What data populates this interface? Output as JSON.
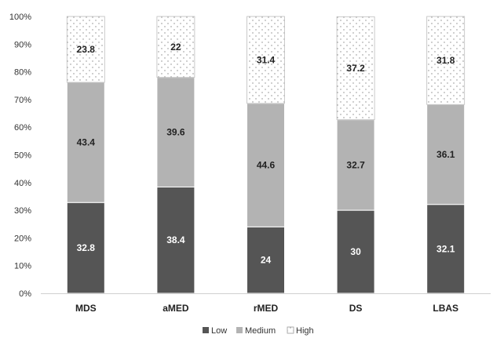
{
  "chart_data": {
    "type": "bar",
    "stacked": true,
    "percent_stacked": true,
    "categories": [
      "MDS",
      "aMED",
      "rMED",
      "DS",
      "LBAS"
    ],
    "series": [
      {
        "name": "Low",
        "values": [
          32.8,
          38.4,
          24,
          30,
          32.1
        ],
        "color": "#555555",
        "pattern": "solid"
      },
      {
        "name": "Medium",
        "values": [
          43.4,
          39.6,
          44.6,
          32.7,
          36.1
        ],
        "color": "#b3b3b3",
        "pattern": "solid"
      },
      {
        "name": "High",
        "values": [
          23.8,
          22,
          31.4,
          37.2,
          31.8
        ],
        "color": "#ffffff",
        "pattern": "dots"
      }
    ],
    "data_labels": [
      [
        "32.8",
        "38.4",
        "24",
        "30",
        "32.1"
      ],
      [
        "43.4",
        "39.6",
        "44.6",
        "32.7",
        "36.1"
      ],
      [
        "23.8",
        "22",
        "31.4",
        "37.2",
        "31.8"
      ]
    ],
    "yticks": [
      "0%",
      "10%",
      "20%",
      "30%",
      "40%",
      "50%",
      "60%",
      "70%",
      "80%",
      "90%",
      "100%"
    ],
    "ylim": [
      0,
      100
    ],
    "grid": false,
    "legend": {
      "position": "bottom",
      "entries": [
        "Low",
        "Medium",
        "High"
      ]
    },
    "title": "",
    "xlabel": "",
    "ylabel": ""
  }
}
